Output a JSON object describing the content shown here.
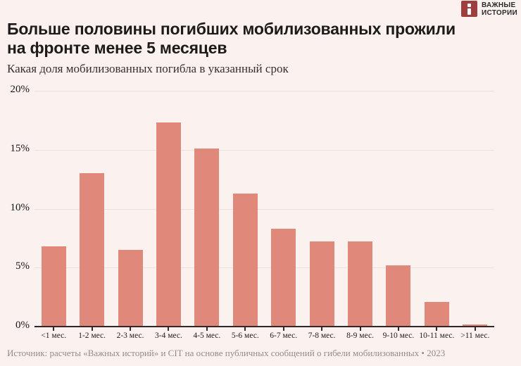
{
  "logo": {
    "line1": "ВАЖНЫЕ",
    "line2": "ИСТОРИИ",
    "mark_color": "#9e3e3e",
    "mark_icon": "i"
  },
  "header": {
    "title_line1": "Больше половины погибших мобилизованных прожили",
    "title_line2": "на фронте менее 5 месяцев",
    "subtitle": "Какая доля мобилизованных погибла в указанный срок"
  },
  "chart_data": {
    "type": "bar",
    "title": "Больше половины погибших мобилизованных прожили на фронте менее 5 месяцев",
    "subtitle": "Какая доля мобилизованных погибла в указанный срок",
    "categories": [
      "<1 мес.",
      "1-2 мес.",
      "2-3 мес.",
      "3-4 мес.",
      "4-5 мес.",
      "5-6 мес.",
      "6-7 мес.",
      "7-8 мес.",
      "8-9 мес.",
      "9-10 мес.",
      "10-11 мес.",
      ">11 мес."
    ],
    "values": [
      6.8,
      13.0,
      6.5,
      17.3,
      15.1,
      11.3,
      8.3,
      7.2,
      7.2,
      5.2,
      2.1,
      0.2
    ],
    "unit": "%",
    "xlabel": "",
    "ylabel": "",
    "ylim": [
      0,
      20
    ],
    "yticks": [
      0,
      5,
      10,
      15,
      20
    ],
    "ytick_labels": [
      "0%",
      "5%",
      "10%",
      "15%",
      "20%"
    ],
    "grid": true,
    "legend": "none",
    "bar_color": "#e0897b",
    "background_color": "#fbf1ef"
  },
  "footer": {
    "source": "Источник: расчеты «Важных историй» и CIT на основе публичных сообщений о гибели мобилизованных • 2023"
  }
}
